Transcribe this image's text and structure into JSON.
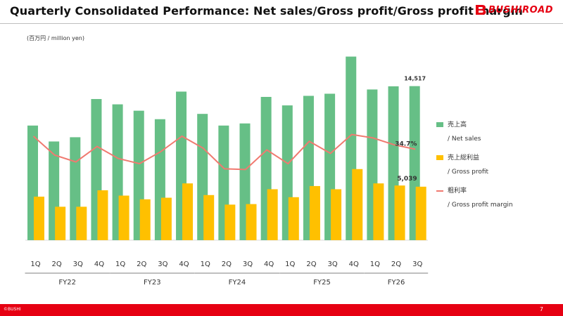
{
  "header": {
    "title": "Quarterly Consolidated Performance: Net sales/Gross profit/Gross profit margin",
    "brand": "BUSHIROAD",
    "brand_color": "#e60012"
  },
  "unit_label": "(百万円 / million yen)",
  "legend": [
    {
      "jp": "売上高",
      "en": "/ Net sales",
      "color": "#66bf86"
    },
    {
      "jp": "売上総利益",
      "en": "/ Gross profit",
      "color": "#ffc000"
    },
    {
      "jp": "粗利率",
      "en": "/ Gross profit margin",
      "color": "#f07a70"
    }
  ],
  "footer": {
    "copyright": "©BUSHI",
    "page": "7"
  },
  "chart_data": {
    "type": "bar",
    "categories": [
      "1Q",
      "2Q",
      "3Q",
      "4Q",
      "1Q",
      "2Q",
      "3Q",
      "4Q",
      "1Q",
      "2Q",
      "3Q",
      "4Q",
      "1Q",
      "2Q",
      "3Q",
      "4Q",
      "1Q",
      "2Q",
      "3Q"
    ],
    "groups": [
      {
        "label": "FY22",
        "count": 4
      },
      {
        "label": "FY23",
        "count": 4
      },
      {
        "label": "FY24",
        "count": 4
      },
      {
        "label": "FY25",
        "count": 4
      },
      {
        "label": "FY26",
        "count": 3
      }
    ],
    "series": [
      {
        "name": "売上高 / Net sales",
        "kind": "bar",
        "color": "#66bf86",
        "values": [
          10800,
          9300,
          9700,
          13300,
          12800,
          12200,
          11400,
          14000,
          11900,
          10800,
          11000,
          13500,
          12700,
          13600,
          13800,
          17300,
          14200,
          14500,
          14517
        ]
      },
      {
        "name": "売上総利益 / Gross profit",
        "kind": "bar",
        "color": "#ffc000",
        "values": [
          4100,
          3150,
          3150,
          4700,
          4200,
          3850,
          4000,
          5350,
          4250,
          3350,
          3400,
          4800,
          4050,
          5100,
          4800,
          6700,
          5350,
          5150,
          5039
        ]
      },
      {
        "name": "粗利率 / Gross profit margin",
        "kind": "line",
        "color": "#f07a70",
        "values": [
          38.5,
          33.0,
          31.0,
          35.5,
          32.0,
          30.5,
          34.0,
          38.5,
          35.0,
          29.0,
          28.8,
          34.5,
          30.5,
          37.0,
          33.5,
          39.0,
          38.0,
          36.0,
          34.7
        ]
      }
    ],
    "data_labels": {
      "net_sales_last": "14,517",
      "gross_profit_last": "5,039",
      "margin_last": "34.7%"
    },
    "ylim_bar": [
      0,
      18000
    ],
    "ylim_line": [
      0,
      100
    ],
    "grid": false,
    "legend_position": "right"
  }
}
